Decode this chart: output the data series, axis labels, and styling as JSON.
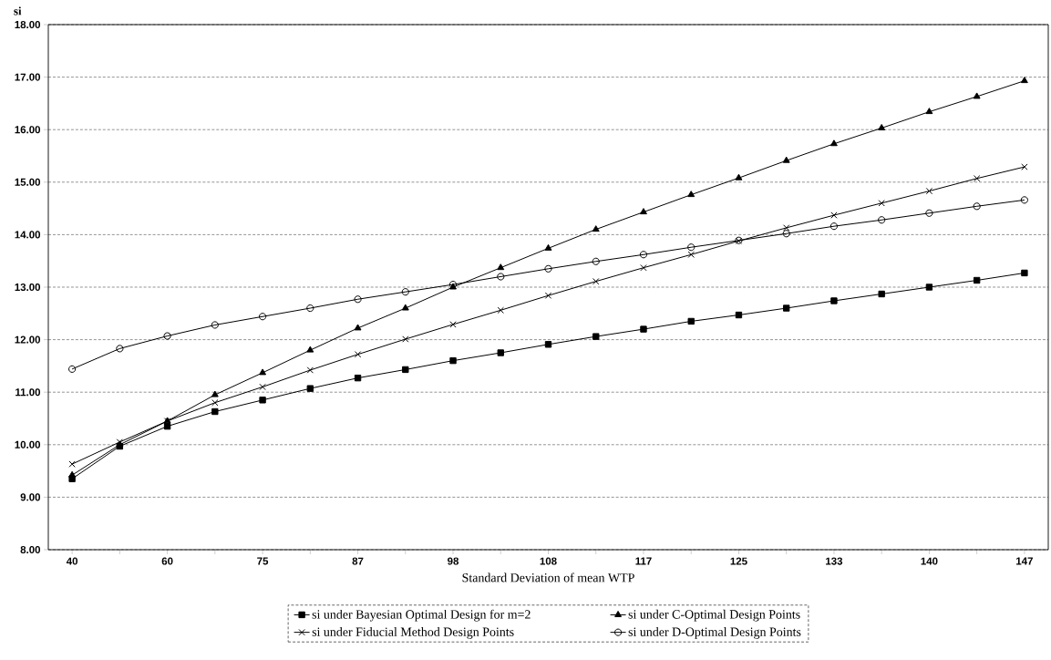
{
  "chart_data": {
    "type": "line",
    "xlabel": "Standard Deviation of mean WTP",
    "ylabel": "si",
    "categories": [
      "40",
      null,
      "60",
      null,
      "75",
      null,
      "87",
      null,
      "98",
      null,
      "108",
      null,
      "117",
      null,
      "125",
      null,
      "133",
      null,
      "140",
      null,
      "147"
    ],
    "series": [
      {
        "name": "si under Bayesian Optimal Design for m=2",
        "color": "#000000",
        "marker": "square",
        "values": [
          9.35,
          9.97,
          10.35,
          10.63,
          10.85,
          11.07,
          11.27,
          11.43,
          11.6,
          11.75,
          11.91,
          12.06,
          12.2,
          12.35,
          12.47,
          12.6,
          12.74,
          12.87,
          13.0,
          13.13,
          13.27
        ]
      },
      {
        "name": "si under C-Optimal Design Points",
        "color": "#000000",
        "marker": "triangle",
        "values": [
          9.42,
          10.0,
          10.45,
          10.95,
          11.37,
          11.8,
          12.22,
          12.6,
          13.0,
          13.37,
          13.74,
          14.1,
          14.43,
          14.76,
          15.08,
          15.41,
          15.73,
          16.03,
          16.34,
          16.63,
          16.93
        ]
      },
      {
        "name": "si under Fiducial Method Design Points",
        "color": "#000000",
        "marker": "cross",
        "values": [
          9.63,
          10.05,
          10.45,
          10.8,
          11.1,
          11.42,
          11.72,
          12.01,
          12.29,
          12.56,
          12.84,
          13.11,
          13.37,
          13.62,
          13.88,
          14.13,
          14.37,
          14.6,
          14.83,
          15.07,
          15.29
        ]
      },
      {
        "name": "si under D-Optimal Design Points",
        "color": "#000000",
        "marker": "circle",
        "values": [
          11.44,
          11.83,
          12.07,
          12.28,
          12.44,
          12.6,
          12.77,
          12.91,
          13.05,
          13.2,
          13.35,
          13.49,
          13.62,
          13.76,
          13.89,
          14.02,
          14.16,
          14.28,
          14.41,
          14.54,
          14.66
        ]
      }
    ],
    "ylim": [
      8,
      18
    ],
    "yticks": [
      {
        "value": 8,
        "label": "8.00"
      },
      {
        "value": 9,
        "label": "9.00"
      },
      {
        "value": 10,
        "label": "10.00"
      },
      {
        "value": 11,
        "label": "11.00"
      },
      {
        "value": 12,
        "label": "12.00"
      },
      {
        "value": 13,
        "label": "13.00"
      },
      {
        "value": 14,
        "label": "14.00"
      },
      {
        "value": 15,
        "label": "15.00"
      },
      {
        "value": 16,
        "label": "16.00"
      },
      {
        "value": 17,
        "label": "17.00"
      },
      {
        "value": 18,
        "label": "18.00"
      }
    ],
    "grid": "y",
    "legend": "bottom",
    "line_style": "solid"
  }
}
